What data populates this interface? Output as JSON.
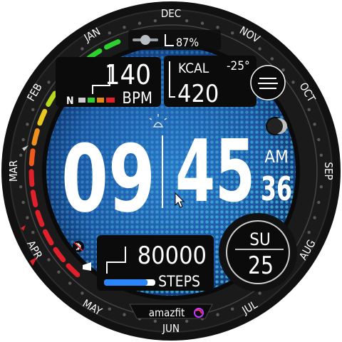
{
  "bezel": {
    "months": [
      "JUN",
      "JUL",
      "AUG",
      "SEP",
      "OCT",
      "NOV",
      "DEC",
      "JAN",
      "FEB",
      "MAR",
      "APR",
      "MAY"
    ],
    "brand": "amazfit"
  },
  "battery": {
    "value": "87%",
    "level": 0.87
  },
  "heart": {
    "value": "140",
    "unit": "BPM",
    "zone_label": "N"
  },
  "calories": {
    "label": "KCAL",
    "value": "420"
  },
  "weather": {
    "temperature": "-25°"
  },
  "time": {
    "hours": "09",
    "minutes": "45",
    "ampm": "AM",
    "seconds": "36"
  },
  "date": {
    "weekday": "SU",
    "day": "25"
  },
  "steps": {
    "value": "80000",
    "label": "STEPS",
    "progress": 0.85
  },
  "colors": {
    "background_blue": "#1e5fae",
    "dot_cyan": "#5fd8e6",
    "ring_green": "#2fcf2f",
    "ring_red": "#e0202a",
    "steps_bar": "#2a86ff",
    "text": "#ffffff"
  }
}
